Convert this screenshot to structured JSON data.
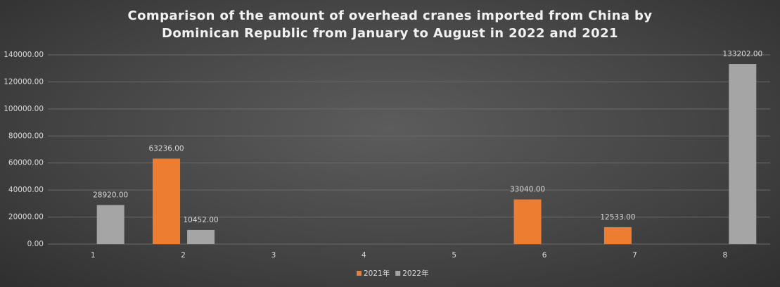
{
  "chart_data": {
    "type": "bar",
    "title": "Comparison of the amount of overhead cranes imported from China by Dominican Republic from January to August in 2022 and 2021",
    "categories": [
      "1",
      "2",
      "3",
      "4",
      "5",
      "6",
      "7",
      "8"
    ],
    "series": [
      {
        "name": "2021年",
        "color": "#ed7d31",
        "values": [
          null,
          63236,
          null,
          null,
          null,
          33040,
          12533,
          null
        ],
        "value_labels": [
          null,
          "63236.00",
          null,
          null,
          null,
          "33040.00",
          "12533.00",
          null
        ]
      },
      {
        "name": "2022年",
        "color": "#a5a5a5",
        "values": [
          28920,
          10452,
          null,
          null,
          null,
          null,
          null,
          133202
        ],
        "value_labels": [
          "28920.00",
          "10452.00",
          null,
          null,
          null,
          null,
          null,
          "133202.00"
        ]
      }
    ],
    "ylim": [
      0,
      140000
    ],
    "yticks": [
      {
        "value": 0,
        "label": "0.00"
      },
      {
        "value": 20000,
        "label": "20000.00"
      },
      {
        "value": 40000,
        "label": "40000.00"
      },
      {
        "value": 60000,
        "label": "60000.00"
      },
      {
        "value": 80000,
        "label": "80000.00"
      },
      {
        "value": 100000,
        "label": "100000.00"
      },
      {
        "value": 120000,
        "label": "120000.00"
      },
      {
        "value": 140000,
        "label": "140000.00"
      }
    ],
    "grid": true,
    "legend": "bottom"
  }
}
